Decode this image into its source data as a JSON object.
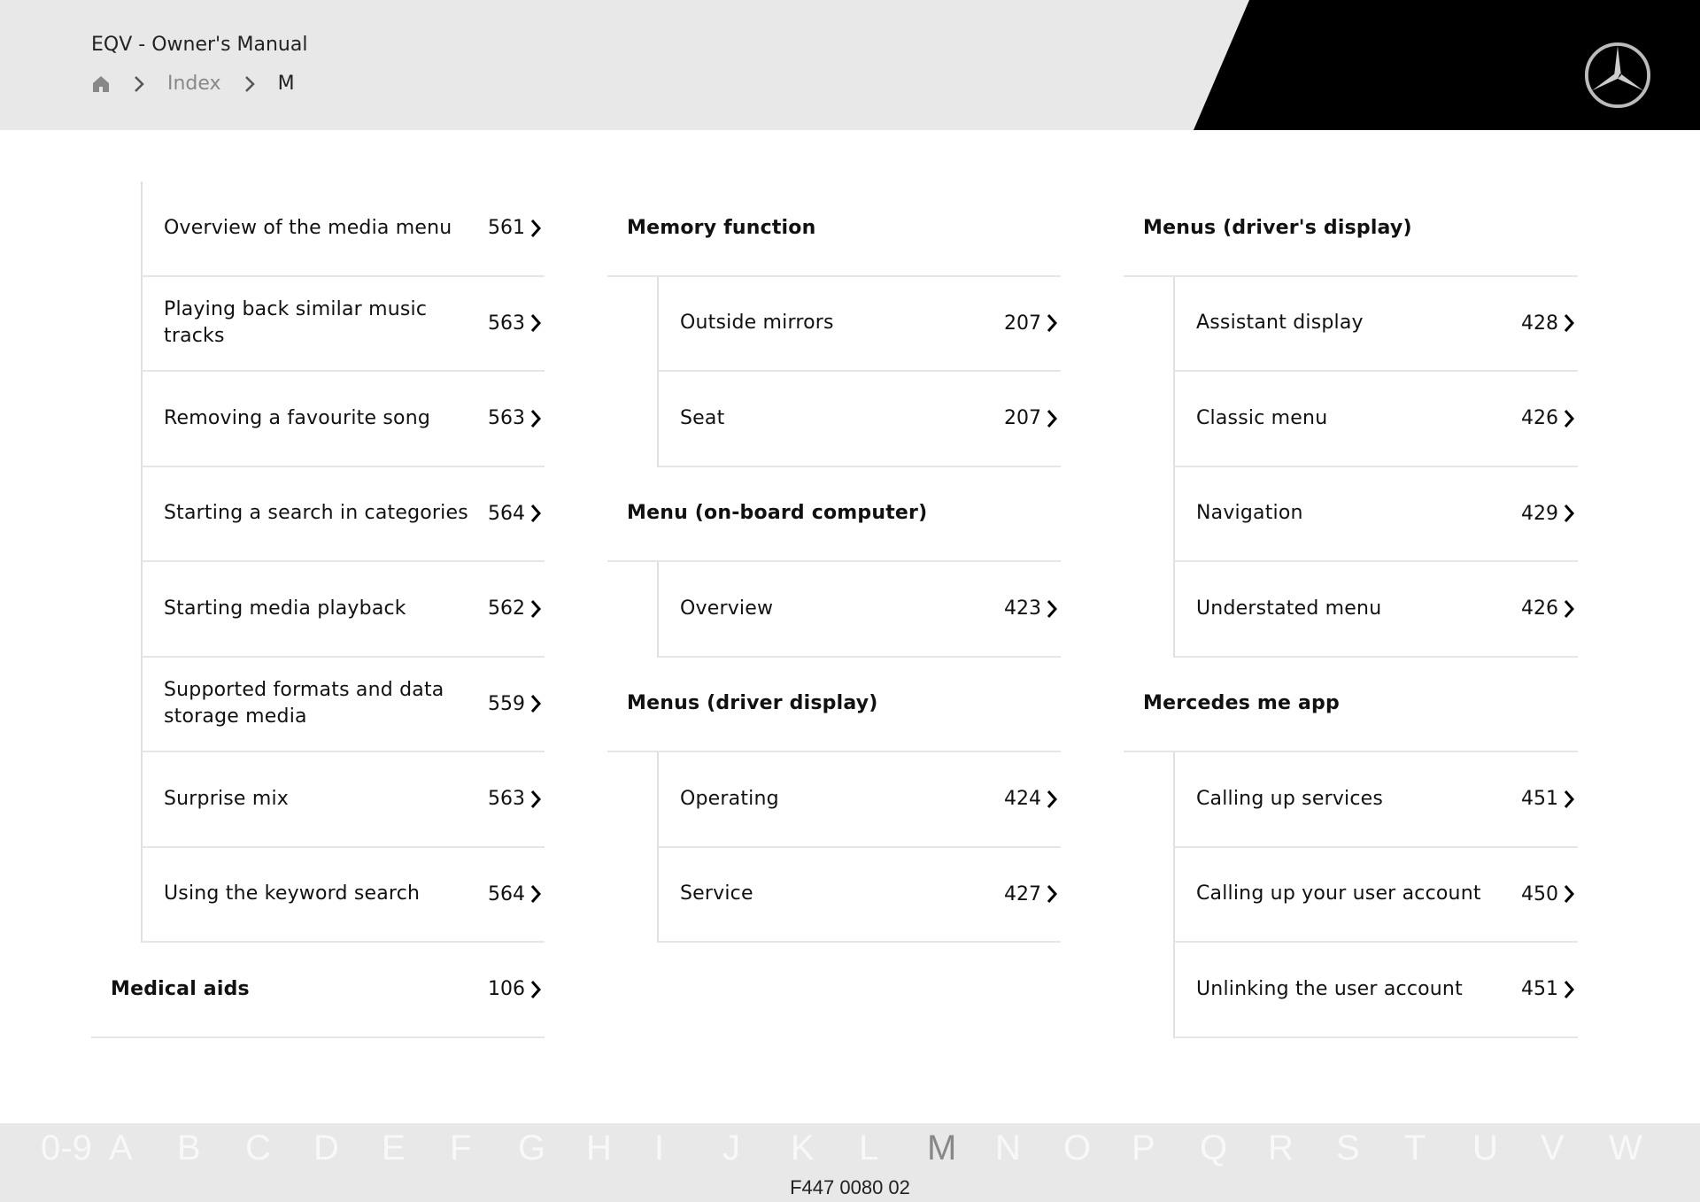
{
  "header": {
    "title": "EQV - Owner's Manual",
    "breadcrumb": [
      "Index",
      "M"
    ]
  },
  "columns": [
    [
      {
        "type": "sub",
        "label": "Overview of the media menu",
        "page": "561"
      },
      {
        "type": "sub",
        "label": "Playing back similar music tracks",
        "page": "563"
      },
      {
        "type": "sub",
        "label": "Removing a favourite song",
        "page": "563"
      },
      {
        "type": "sub",
        "label": "Starting a search in categories",
        "page": "564"
      },
      {
        "type": "sub",
        "label": "Starting media playback",
        "page": "562"
      },
      {
        "type": "sub",
        "label": "Supported formats and data storage media",
        "page": "559"
      },
      {
        "type": "sub",
        "label": "Surprise mix",
        "page": "563"
      },
      {
        "type": "sub",
        "label": "Using the keyword search",
        "page": "564"
      },
      {
        "type": "head",
        "label": "Medical aids",
        "page": "106"
      }
    ],
    [
      {
        "type": "head",
        "label": "Memory function",
        "page": ""
      },
      {
        "type": "sub",
        "label": "Outside mirrors",
        "page": "207"
      },
      {
        "type": "sub",
        "label": "Seat",
        "page": "207"
      },
      {
        "type": "head",
        "label": "Menu (on-board computer)",
        "page": ""
      },
      {
        "type": "sub",
        "label": "Overview",
        "page": "423"
      },
      {
        "type": "head",
        "label": "Menus (driver display)",
        "page": ""
      },
      {
        "type": "sub",
        "label": "Operating",
        "page": "424"
      },
      {
        "type": "sub",
        "label": "Service",
        "page": "427"
      }
    ],
    [
      {
        "type": "head",
        "label": "Menus (driver's display)",
        "page": ""
      },
      {
        "type": "sub",
        "label": "Assistant display",
        "page": "428"
      },
      {
        "type": "sub",
        "label": "Classic menu",
        "page": "426"
      },
      {
        "type": "sub",
        "label": "Navigation",
        "page": "429"
      },
      {
        "type": "sub",
        "label": "Understated menu",
        "page": "426"
      },
      {
        "type": "head",
        "label": "Mercedes me app",
        "page": ""
      },
      {
        "type": "sub",
        "label": "Calling up services",
        "page": "451"
      },
      {
        "type": "sub",
        "label": "Calling up your user account",
        "page": "450"
      },
      {
        "type": "sub",
        "label": "Unlinking the user account",
        "page": "451"
      }
    ]
  ],
  "alphabet": [
    "0-9",
    "A",
    "B",
    "C",
    "D",
    "E",
    "F",
    "G",
    "H",
    "I",
    "J",
    "K",
    "L",
    "M",
    "N",
    "O",
    "P",
    "Q",
    "R",
    "S",
    "T",
    "U",
    "V",
    "W"
  ],
  "active_letter": "M",
  "footer_code": "F447 0080 02"
}
